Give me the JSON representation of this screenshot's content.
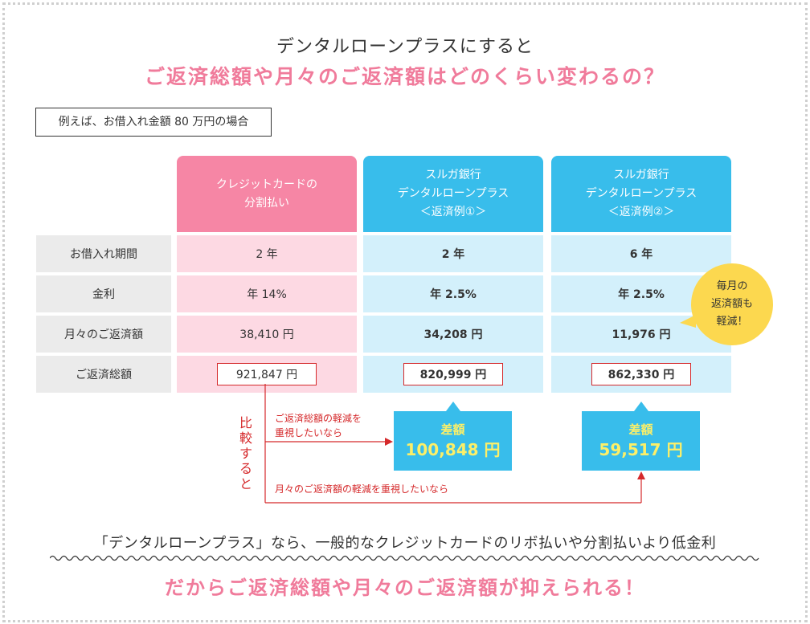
{
  "title": {
    "line1": "デンタルローンプラスにすると",
    "line2": "ご返済総額や月々のご返済額はどのくらい変わるの？"
  },
  "example_note": "例えば、お借入れ金額 80 万円の場合",
  "columns": [
    {
      "line1": "クレジットカードの",
      "line2": "分割払い",
      "line3": ""
    },
    {
      "line1": "スルガ銀行",
      "line2": "デンタルローンプラス",
      "line3": "＜返済例①＞"
    },
    {
      "line1": "スルガ銀行",
      "line2": "デンタルローンプラス",
      "line3": "＜返済例②＞"
    }
  ],
  "rows": [
    {
      "label": "お借入れ期間",
      "values": [
        "2 年",
        "2 年",
        "6 年"
      ]
    },
    {
      "label": "金利",
      "values": [
        "年 14%",
        "年 2.5%",
        "年 2.5%"
      ]
    },
    {
      "label": "月々のご返済額",
      "values": [
        "38,410 円",
        "34,208 円",
        "11,976 円"
      ]
    },
    {
      "label": "ご返済総額",
      "values": [
        "921,847 円",
        "820,999 円",
        "862,330 円"
      ]
    }
  ],
  "bubble": {
    "line1": "毎月の",
    "line2": "返済額も",
    "line3": "軽減！"
  },
  "compare_label": [
    "比",
    "較",
    "す",
    "る",
    "と"
  ],
  "notes": {
    "total_line1": "ご返済総額の軽減を",
    "total_line2": "重視したいなら",
    "monthly": "月々のご返済額の軽減を重視したいなら"
  },
  "diffs": [
    {
      "label": "差額",
      "amount": "100,848 円"
    },
    {
      "label": "差額",
      "amount": "59,517 円"
    }
  ],
  "summary": "「デンタルローンプラス」なら、一般的なクレジットカードのリボ払いや分割払いより低金利",
  "conclusion": "だからご返済総額や月々のご返済額が抑えられる！",
  "colors": {
    "pink": "#f686a5",
    "pink_light": "#fdd9e3",
    "blue": "#38bdeb",
    "blue_light": "#d3f0fb",
    "red": "#d5292b",
    "yellow": "#fcd84f",
    "accent_text": "#f07b9b"
  }
}
